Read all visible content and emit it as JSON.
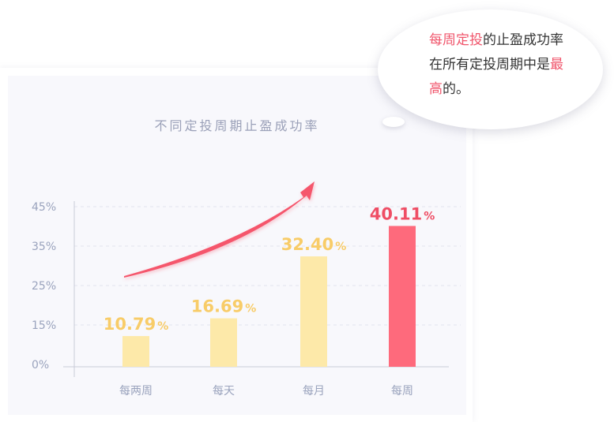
{
  "chart_data": {
    "type": "bar",
    "title": "不同定投周期止盈成功率",
    "categories": [
      "每两周",
      "每天",
      "每月",
      "每周"
    ],
    "values": [
      10.79,
      16.69,
      32.4,
      40.11
    ],
    "value_labels": [
      "10.79",
      "16.69",
      "32.40",
      "40.11"
    ],
    "value_unit": "%",
    "yticks": [
      "0%",
      "15%",
      "25%",
      "35%",
      "45%"
    ],
    "ytick_values": [
      0,
      15,
      25,
      35,
      45
    ],
    "grid": true,
    "colors": {
      "normal_bar": "#fde9a9",
      "normal_label": "#f8cc68",
      "highlight_bar": "#fe6a7c",
      "highlight_label": "#ef4e65",
      "arrow": "#f5566c",
      "axis_text": "#9aa3bd"
    },
    "highlight_index": 3
  },
  "callout": {
    "part1": "每周定投",
    "part2": "的止盈成功率在所有定投周期中是",
    "part3": "最高",
    "part4": "的。"
  }
}
